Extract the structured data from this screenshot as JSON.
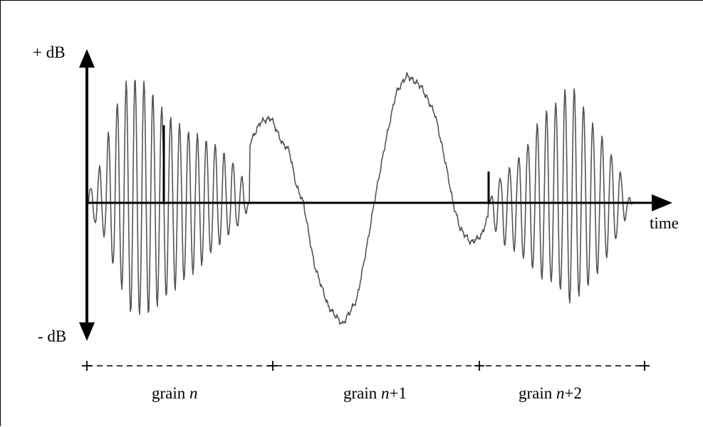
{
  "y_axis": {
    "top_label": "+ dB",
    "bottom_label": "- dB"
  },
  "x_axis": {
    "label": "time"
  },
  "grains": [
    {
      "prefix": "grain ",
      "var": "n",
      "suffix": ""
    },
    {
      "prefix": "grain ",
      "var": "n",
      "suffix": "+1"
    },
    {
      "prefix": "grain ",
      "var": "n",
      "suffix": "+2"
    }
  ],
  "colors": {
    "line": "#000000",
    "wave": "#555555",
    "background": "#ffffff"
  }
}
